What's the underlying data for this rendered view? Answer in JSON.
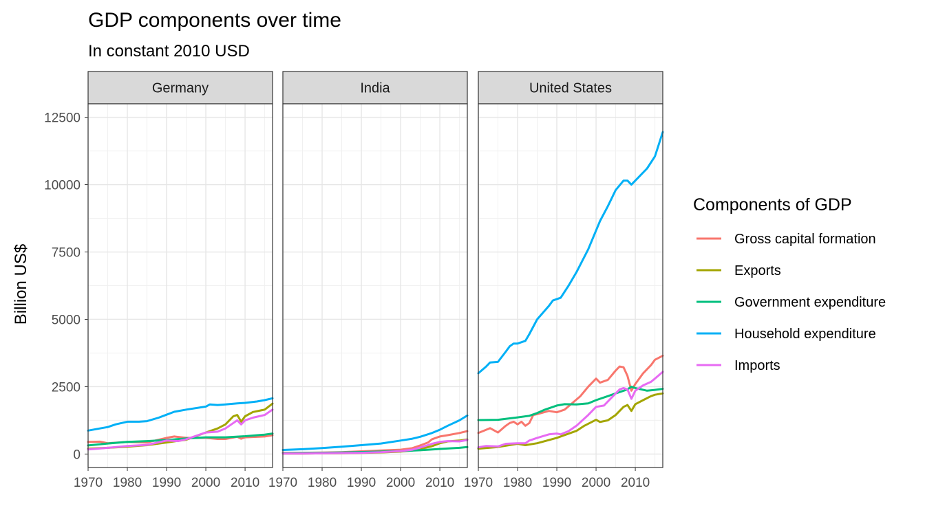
{
  "title": "GDP components over time",
  "subtitle": "In constant 2010 USD",
  "chart_data": {
    "type": "line",
    "title": "GDP components over time",
    "subtitle": "In constant 2010 USD",
    "xlabel": "",
    "ylabel": "Billion US$",
    "xlim": [
      1970,
      2017
    ],
    "ylim": [
      -500,
      13000
    ],
    "x_ticks": [
      1970,
      1980,
      1990,
      2000,
      2010
    ],
    "y_ticks": [
      0,
      2500,
      5000,
      7500,
      10000,
      12500
    ],
    "grid": true,
    "legend_position": "right",
    "legend_title": "Components of GDP",
    "series_styles": [
      {
        "name": "Gross capital formation",
        "color": "#F8766D"
      },
      {
        "name": "Exports",
        "color": "#A3A500"
      },
      {
        "name": "Government expenditure",
        "color": "#00BF7D"
      },
      {
        "name": "Household expenditure",
        "color": "#00B0F6"
      },
      {
        "name": "Imports",
        "color": "#E76BF3"
      }
    ],
    "panels": [
      {
        "label": "Germany",
        "series": [
          {
            "name": "Gross capital formation",
            "x": [
              1970,
              1973,
              1975,
              1980,
              1985,
              1990,
              1992,
              1995,
              2000,
              2003,
              2005,
              2008,
              2009,
              2010,
              2015,
              2017
            ],
            "y": [
              450,
              460,
              400,
              450,
              430,
              600,
              650,
              600,
              600,
              560,
              560,
              640,
              570,
              620,
              650,
              700
            ]
          },
          {
            "name": "Exports",
            "x": [
              1970,
              1975,
              1980,
              1985,
              1990,
              1995,
              2000,
              2003,
              2005,
              2007,
              2008,
              2009,
              2010,
              2012,
              2015,
              2017
            ],
            "y": [
              200,
              230,
              270,
              330,
              430,
              530,
              800,
              950,
              1100,
              1400,
              1450,
              1200,
              1400,
              1560,
              1650,
              1870
            ]
          },
          {
            "name": "Government expenditure",
            "x": [
              1970,
              1975,
              1980,
              1985,
              1990,
              1995,
              2000,
              2005,
              2010,
              2015,
              2017
            ],
            "y": [
              320,
              390,
              450,
              480,
              520,
              580,
              620,
              620,
              660,
              720,
              760
            ]
          },
          {
            "name": "Household expenditure",
            "x": [
              1970,
              1973,
              1975,
              1977,
              1980,
              1983,
              1985,
              1988,
              1990,
              1992,
              1995,
              2000,
              2001,
              2003,
              2005,
              2008,
              2010,
              2013,
              2015,
              2017
            ],
            "y": [
              870,
              950,
              1000,
              1100,
              1200,
              1200,
              1220,
              1350,
              1460,
              1570,
              1650,
              1760,
              1840,
              1820,
              1840,
              1880,
              1900,
              1950,
              2000,
              2070
            ]
          },
          {
            "name": "Imports",
            "x": [
              1970,
              1975,
              1980,
              1985,
              1990,
              1993,
              1995,
              2000,
              2003,
              2005,
              2007,
              2008,
              2009,
              2010,
              2012,
              2015,
              2017
            ],
            "y": [
              170,
              230,
              300,
              340,
              500,
              480,
              550,
              800,
              830,
              950,
              1150,
              1250,
              1100,
              1250,
              1350,
              1450,
              1650
            ]
          }
        ]
      },
      {
        "label": "India",
        "series": [
          {
            "name": "Gross capital formation",
            "x": [
              1970,
              1975,
              1980,
              1985,
              1990,
              1995,
              2000,
              2003,
              2005,
              2007,
              2008,
              2010,
              2012,
              2015,
              2017
            ],
            "y": [
              40,
              45,
              55,
              70,
              100,
              130,
              160,
              220,
              320,
              430,
              550,
              650,
              700,
              780,
              850
            ]
          },
          {
            "name": "Exports",
            "x": [
              1970,
              1975,
              1980,
              1985,
              1990,
              1995,
              2000,
              2003,
              2005,
              2008,
              2010,
              2012,
              2015,
              2017
            ],
            "y": [
              15,
              18,
              25,
              30,
              40,
              60,
              90,
              130,
              190,
              290,
              400,
              470,
              500,
              540
            ]
          },
          {
            "name": "Government expenditure",
            "x": [
              1970,
              1975,
              1980,
              1985,
              1990,
              1995,
              2000,
              2005,
              2010,
              2015,
              2017
            ],
            "y": [
              30,
              35,
              45,
              60,
              75,
              90,
              110,
              140,
              190,
              230,
              260
            ]
          },
          {
            "name": "Household expenditure",
            "x": [
              1970,
              1975,
              1980,
              1985,
              1990,
              1995,
              2000,
              2003,
              2005,
              2008,
              2010,
              2012,
              2015,
              2017
            ],
            "y": [
              150,
              180,
              220,
              270,
              330,
              390,
              500,
              570,
              640,
              780,
              900,
              1050,
              1250,
              1430
            ]
          },
          {
            "name": "Imports",
            "x": [
              1970,
              1975,
              1980,
              1985,
              1990,
              1995,
              2000,
              2003,
              2005,
              2008,
              2010,
              2012,
              2015,
              2017
            ],
            "y": [
              15,
              18,
              25,
              35,
              45,
              70,
              110,
              160,
              240,
              380,
              450,
              480,
              470,
              520
            ]
          }
        ]
      },
      {
        "label": "United States",
        "series": [
          {
            "name": "Gross capital formation",
            "x": [
              1970,
              1972,
              1973,
              1975,
              1977,
              1978,
              1979,
              1980,
              1981,
              1982,
              1983,
              1984,
              1985,
              1988,
              1990,
              1992,
              1994,
              1996,
              1998,
              2000,
              2001,
              2003,
              2005,
              2006,
              2007,
              2008,
              2009,
              2010,
              2012,
              2014,
              2015,
              2017
            ],
            "y": [
              780,
              900,
              960,
              800,
              1050,
              1150,
              1200,
              1100,
              1200,
              1050,
              1150,
              1450,
              1480,
              1600,
              1550,
              1650,
              1900,
              2150,
              2500,
              2800,
              2650,
              2750,
              3100,
              3250,
              3220,
              2900,
              2350,
              2600,
              3000,
              3300,
              3500,
              3650
            ]
          },
          {
            "name": "Exports",
            "x": [
              1970,
              1975,
              1980,
              1982,
              1985,
              1990,
              1995,
              1997,
              2000,
              2001,
              2003,
              2005,
              2007,
              2008,
              2009,
              2010,
              2012,
              2014,
              2015,
              2017
            ],
            "y": [
              200,
              260,
              380,
              330,
              400,
              600,
              860,
              1050,
              1270,
              1190,
              1250,
              1450,
              1750,
              1820,
              1600,
              1850,
              2000,
              2150,
              2200,
              2250
            ]
          },
          {
            "name": "Government expenditure",
            "x": [
              1970,
              1975,
              1980,
              1983,
              1985,
              1987,
              1990,
              1992,
              1995,
              1998,
              2000,
              2003,
              2005,
              2008,
              2009,
              2010,
              2013,
              2015,
              2017
            ],
            "y": [
              1260,
              1270,
              1360,
              1420,
              1520,
              1650,
              1800,
              1850,
              1840,
              1880,
              2000,
              2150,
              2250,
              2400,
              2500,
              2450,
              2350,
              2380,
              2420
            ]
          },
          {
            "name": "Household expenditure",
            "x": [
              1970,
              1972,
              1973,
              1975,
              1977,
              1978,
              1979,
              1980,
              1982,
              1983,
              1985,
              1988,
              1989,
              1990,
              1991,
              1993,
              1995,
              1998,
              2000,
              2001,
              2003,
              2005,
              2007,
              2008,
              2009,
              2010,
              2011,
              2013,
              2015,
              2016,
              2017
            ],
            "y": [
              3000,
              3250,
              3400,
              3420,
              3800,
              4000,
              4100,
              4100,
              4200,
              4450,
              5000,
              5500,
              5700,
              5750,
              5800,
              6250,
              6750,
              7600,
              8300,
              8650,
              9200,
              9800,
              10150,
              10150,
              10000,
              10150,
              10300,
              10600,
              11050,
              11500,
              11950
            ]
          },
          {
            "name": "Imports",
            "x": [
              1970,
              1972,
              1975,
              1977,
              1980,
              1982,
              1983,
              1985,
              1988,
              1990,
              1991,
              1993,
              1995,
              1998,
              2000,
              2002,
              2004,
              2006,
              2007,
              2008,
              2009,
              2010,
              2012,
              2014,
              2015,
              2017
            ],
            "y": [
              250,
              300,
              280,
              380,
              400,
              400,
              500,
              600,
              730,
              760,
              730,
              850,
              1050,
              1450,
              1750,
              1800,
              2100,
              2400,
              2450,
              2400,
              2050,
              2350,
              2550,
              2680,
              2800,
              3050
            ]
          }
        ]
      }
    ]
  }
}
